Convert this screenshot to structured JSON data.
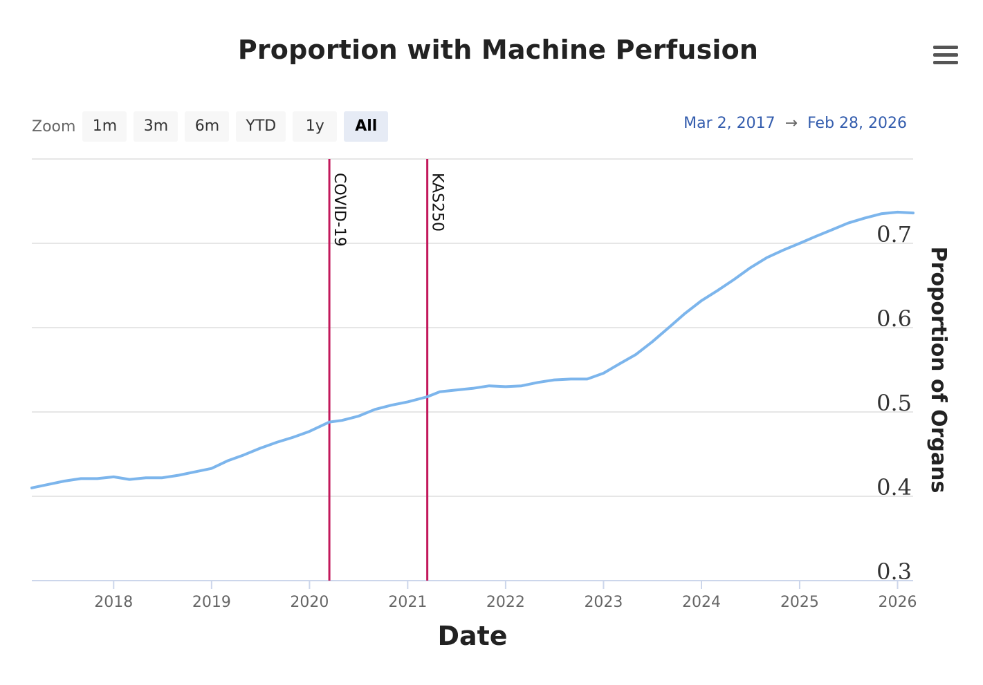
{
  "toolbar": {
    "zoom_label": "Zoom",
    "zoom_buttons": [
      {
        "label": "1m",
        "active": false
      },
      {
        "label": "3m",
        "active": false
      },
      {
        "label": "6m",
        "active": false
      },
      {
        "label": "YTD",
        "active": false
      },
      {
        "label": "1y",
        "active": false
      },
      {
        "label": "All",
        "active": true
      }
    ],
    "range_from": "Mar 2, 2017",
    "range_arrow": "→",
    "range_to": "Feb 28, 2026",
    "menu_icon": "hamburger-menu-icon"
  },
  "chart_data": {
    "type": "line",
    "title": "Proportion with Machine Perfusion",
    "xlabel": "Date",
    "ylabel": "Proportion of Organs",
    "xlim": [
      "2017-03-02",
      "2026-02-28"
    ],
    "ylim": [
      0.3,
      0.8
    ],
    "x_ticks": [
      "2018",
      "2019",
      "2020",
      "2021",
      "2022",
      "2023",
      "2024",
      "2025",
      "2026"
    ],
    "y_ticks": [
      "0.3",
      "0.4",
      "0.5",
      "0.6",
      "0.7"
    ],
    "y_axis_side": "right",
    "grid": true,
    "legend": false,
    "colors": {
      "line": "#7cb5ec",
      "plotline": "#c2185b"
    },
    "series": [
      {
        "x": [
          "2017-03-02",
          "2017-05-01",
          "2017-07-01",
          "2017-09-01",
          "2017-11-01",
          "2018-01-01",
          "2018-03-01",
          "2018-05-01",
          "2018-07-01",
          "2018-09-01",
          "2018-11-01",
          "2019-01-01",
          "2019-03-01",
          "2019-05-01",
          "2019-07-01",
          "2019-09-01",
          "2019-11-01",
          "2020-01-01",
          "2020-03-15",
          "2020-05-01",
          "2020-07-01",
          "2020-09-01",
          "2020-11-01",
          "2021-01-01",
          "2021-03-15",
          "2021-05-01",
          "2021-07-01",
          "2021-09-01",
          "2021-11-01",
          "2022-01-01",
          "2022-03-01",
          "2022-05-01",
          "2022-07-01",
          "2022-09-01",
          "2022-11-01",
          "2023-01-01",
          "2023-03-01",
          "2023-05-01",
          "2023-07-01",
          "2023-09-01",
          "2023-11-01",
          "2024-01-01",
          "2024-03-01",
          "2024-05-01",
          "2024-07-01",
          "2024-09-01",
          "2024-11-01",
          "2025-01-01",
          "2025-03-01",
          "2025-05-01",
          "2025-07-01",
          "2025-09-01",
          "2025-11-01",
          "2026-01-01",
          "2026-02-28"
        ],
        "values": [
          0.41,
          0.414,
          0.418,
          0.421,
          0.421,
          0.423,
          0.42,
          0.422,
          0.422,
          0.425,
          0.429,
          0.433,
          0.442,
          0.449,
          0.457,
          0.464,
          0.47,
          0.477,
          0.488,
          0.49,
          0.495,
          0.503,
          0.508,
          0.512,
          0.518,
          0.524,
          0.526,
          0.528,
          0.531,
          0.53,
          0.531,
          0.535,
          0.538,
          0.539,
          0.539,
          0.546,
          0.557,
          0.568,
          0.583,
          0.6,
          0.617,
          0.632,
          0.644,
          0.657,
          0.671,
          0.683,
          0.692,
          0.7,
          0.708,
          0.716,
          0.724,
          0.73,
          0.735,
          0.737,
          0.736
        ]
      }
    ],
    "plot_lines": [
      {
        "x": "2020-03-15",
        "label": "COVID-19"
      },
      {
        "x": "2021-03-15",
        "label": "KAS250"
      }
    ]
  }
}
